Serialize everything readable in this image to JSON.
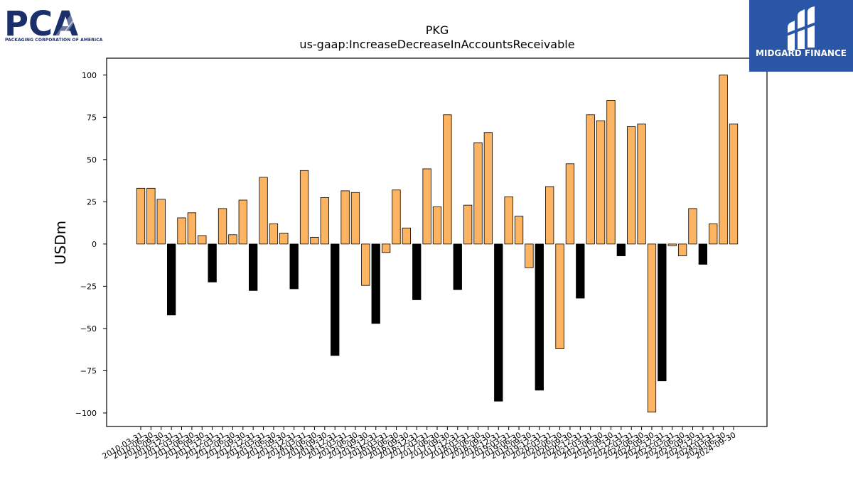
{
  "logos": {
    "left": {
      "name": "PCA",
      "text": "PCA",
      "subtitle": "PACKAGING CORPORATION OF AMERICA",
      "color": "#1b2f6b"
    },
    "right": {
      "name": "MIDGARD FINANCE",
      "text": "MIDGARD FINANCE",
      "background": "#2a56a8",
      "color": "#ffffff"
    }
  },
  "chart_data": {
    "type": "bar",
    "title": "PKG",
    "subtitle": "us-gaap:IncreaseDecreaseInAccountsReceivable",
    "xlabel": "",
    "ylabel": "USDm",
    "ylim": [
      -108,
      110
    ],
    "yticks": [
      -100,
      -75,
      -50,
      -25,
      0,
      25,
      50,
      75,
      100
    ],
    "grid": false,
    "colors": {
      "q1_q3": "#fdb462",
      "q4": "#000000",
      "edge": "#000000"
    },
    "categories": [
      "2010-03-31",
      "2010-06-30",
      "2010-09-30",
      "2010-12-31",
      "2011-03-31",
      "2011-06-30",
      "2011-09-30",
      "2011-12-31",
      "2012-03-31",
      "2012-06-30",
      "2012-09-30",
      "2012-12-31",
      "2013-03-31",
      "2013-06-30",
      "2013-09-30",
      "2013-12-31",
      "2014-03-31",
      "2014-06-30",
      "2014-09-30",
      "2014-12-31",
      "2015-03-31",
      "2015-06-30",
      "2015-09-30",
      "2015-12-31",
      "2016-03-31",
      "2016-06-30",
      "2016-09-30",
      "2016-12-31",
      "2017-03-31",
      "2017-06-30",
      "2017-09-30",
      "2017-12-31",
      "2018-03-31",
      "2018-06-30",
      "2018-09-30",
      "2018-12-31",
      "2019-03-31",
      "2019-06-30",
      "2019-09-30",
      "2019-12-31",
      "2020-03-31",
      "2020-06-30",
      "2020-09-30",
      "2020-12-31",
      "2021-03-31",
      "2021-06-30",
      "2021-09-30",
      "2021-12-31",
      "2022-03-31",
      "2022-06-30",
      "2022-09-30",
      "2022-12-31",
      "2023-03-31",
      "2023-06-30",
      "2023-09-30",
      "2023-12-31",
      "2024-03-31",
      "2024-06-30",
      "2024-09-30"
    ],
    "values": [
      33,
      33,
      26.5,
      -42,
      15.5,
      18.5,
      5,
      -22.5,
      21,
      5.5,
      26,
      -27.5,
      39.5,
      12,
      6.5,
      -26.5,
      43.5,
      4,
      27.5,
      -66,
      31.5,
      30.5,
      -24.5,
      -47,
      -5,
      32,
      9.5,
      -33,
      44.5,
      22,
      76.5,
      -27,
      23,
      60,
      66,
      -93,
      28,
      16.5,
      -14,
      -86.5,
      34,
      -62,
      47.5,
      -32,
      76.5,
      73,
      85,
      -7,
      69.5,
      71,
      -99.5,
      -81,
      -1,
      -7,
      21,
      -12,
      12,
      100,
      71
    ]
  }
}
